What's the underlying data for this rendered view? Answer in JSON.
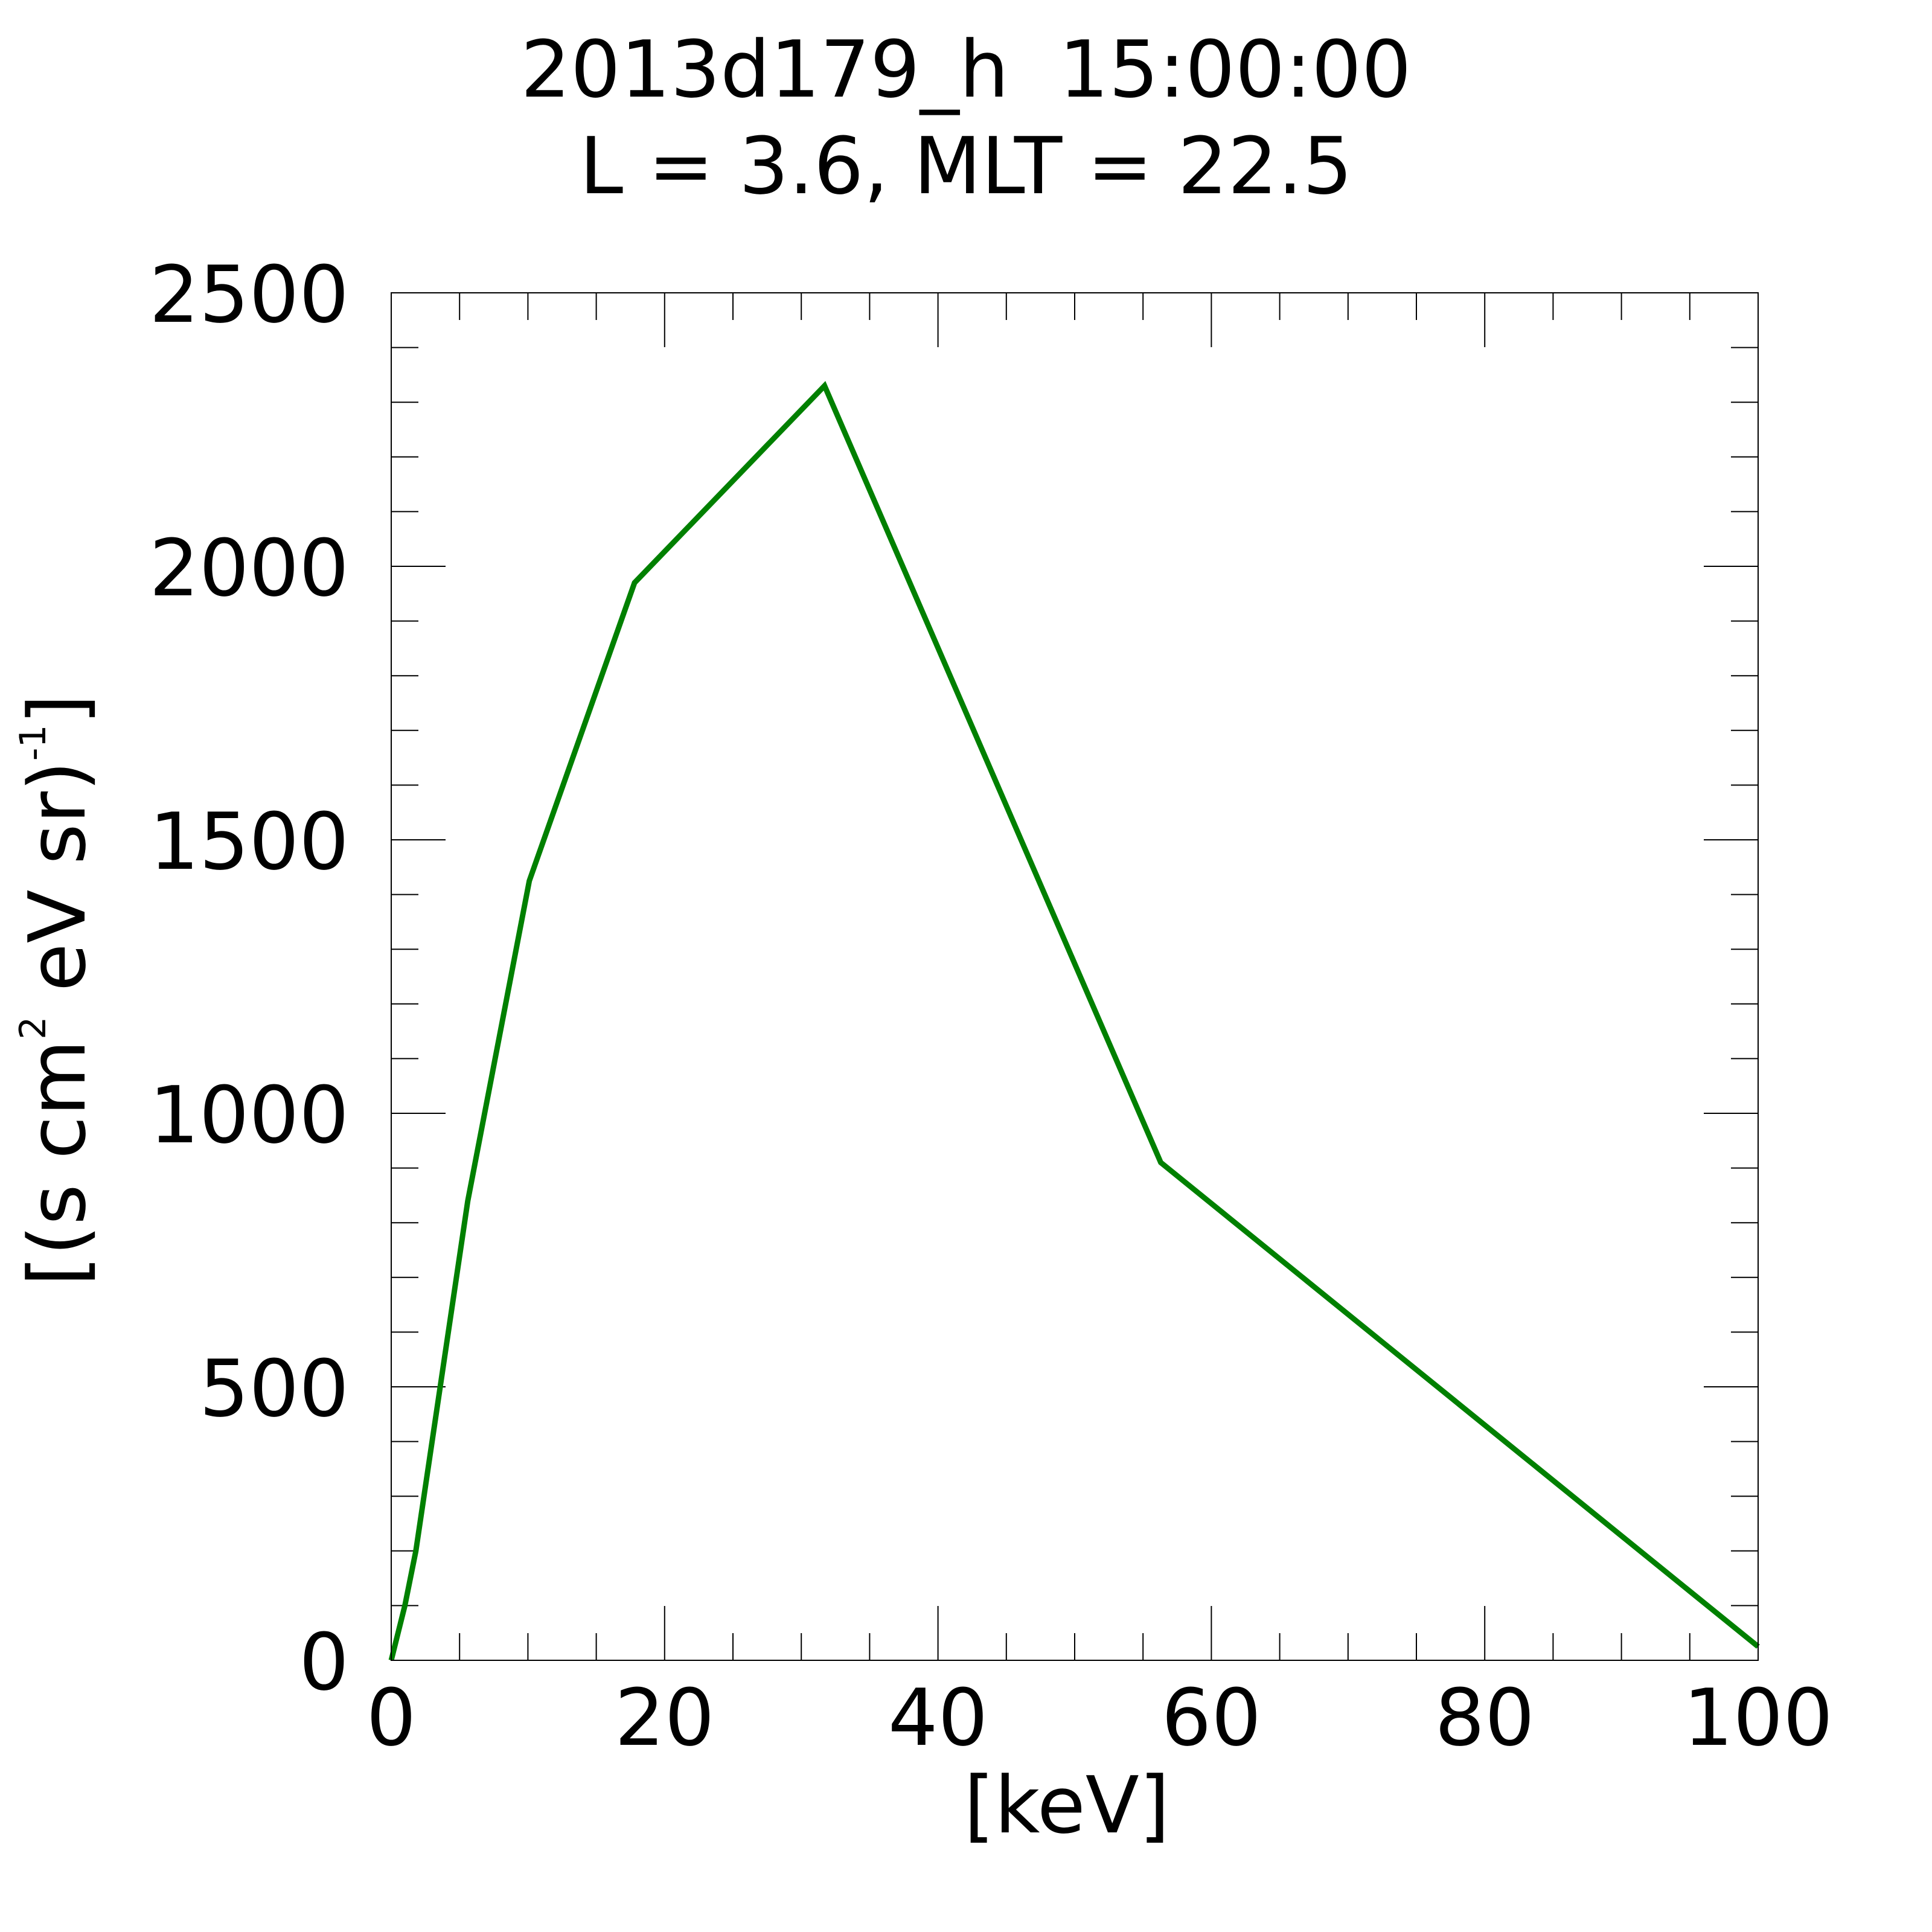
{
  "chart_data": {
    "type": "line",
    "title": "2013d179_h  15:00:00",
    "subtitle": "L = 3.6, MLT = 22.5",
    "xlabel": "[keV]",
    "ylabel": {
      "open": "[(s cm",
      "sup1": "2",
      "middle": " eV sr)",
      "sup2": "-1",
      "close": "]"
    },
    "xlim": [
      0,
      100
    ],
    "ylim": [
      0,
      2500
    ],
    "x_ticks": [
      0,
      20,
      40,
      60,
      80,
      100
    ],
    "y_ticks": [
      0,
      500,
      1000,
      1500,
      2000,
      2500
    ],
    "x_minor_step": 5,
    "y_minor_step": 100,
    "grid": false,
    "series": [
      {
        "color": "#008000",
        "x": [
          0,
          0.5,
          1.0,
          1.8,
          5.6,
          10.1,
          17.8,
          31.7,
          56.3,
          100
        ],
        "y": [
          0,
          50,
          100,
          200,
          840,
          1425,
          1970,
          2330,
          910,
          25
        ]
      }
    ]
  }
}
